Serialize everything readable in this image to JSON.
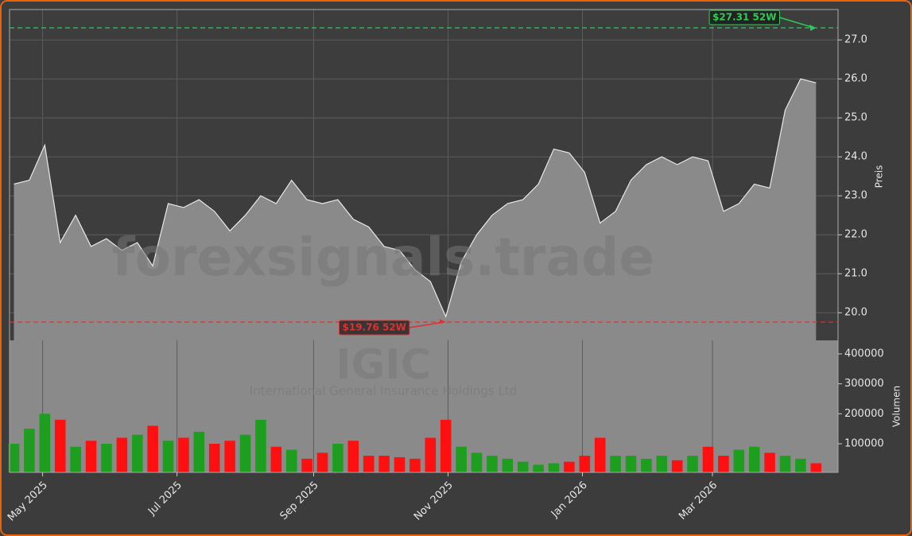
{
  "chart_data": {
    "type": "area",
    "watermark": "forexsignals.trade",
    "symbol": "IGIC",
    "company": "International General Insurance Holdings Ltd",
    "ylabel": "Preis",
    "color": "#8a8a8a",
    "line_color": "#e8e8e8",
    "grid": true,
    "x": [
      "2025-04-18",
      "2025-04-25",
      "2025-05-02",
      "2025-05-09",
      "2025-05-16",
      "2025-05-23",
      "2025-05-30",
      "2025-06-06",
      "2025-06-13",
      "2025-06-20",
      "2025-06-27",
      "2025-07-04",
      "2025-07-11",
      "2025-07-18",
      "2025-07-25",
      "2025-08-01",
      "2025-08-08",
      "2025-08-15",
      "2025-08-22",
      "2025-08-29",
      "2025-09-05",
      "2025-09-12",
      "2025-09-19",
      "2025-09-26",
      "2025-10-03",
      "2025-10-10",
      "2025-10-17",
      "2025-10-24",
      "2025-10-31",
      "2025-11-07",
      "2025-11-14",
      "2025-11-21",
      "2025-11-28",
      "2025-12-05",
      "2025-12-12",
      "2025-12-19",
      "2025-12-26",
      "2026-01-02",
      "2026-01-09",
      "2026-01-16",
      "2026-01-23",
      "2026-01-30",
      "2026-02-06",
      "2026-02-13",
      "2026-02-20",
      "2026-02-27",
      "2026-03-06",
      "2026-03-13",
      "2026-03-20",
      "2026-03-27",
      "2026-04-03",
      "2026-04-10",
      "2026-04-17"
    ],
    "values": [
      23.3,
      23.4,
      24.3,
      21.8,
      22.5,
      21.7,
      21.9,
      21.6,
      21.8,
      21.2,
      22.8,
      22.7,
      22.9,
      22.6,
      22.1,
      22.5,
      23.0,
      22.8,
      23.4,
      22.9,
      22.8,
      22.9,
      22.4,
      22.2,
      21.7,
      21.6,
      21.1,
      20.8,
      19.9,
      21.3,
      22.0,
      22.5,
      22.8,
      22.9,
      23.3,
      24.2,
      24.1,
      23.6,
      22.3,
      22.6,
      23.4,
      23.8,
      24.0,
      23.8,
      24.0,
      23.9,
      22.6,
      22.8,
      23.3,
      23.2,
      25.2,
      26.0,
      25.9
    ],
    "xlim": [
      "2025-04-16",
      "2026-04-27"
    ],
    "xticks": [
      {
        "value": "2025-05-01",
        "label": "May 2025"
      },
      {
        "value": "2025-07-01",
        "label": "Jul 2025"
      },
      {
        "value": "2025-09-01",
        "label": "Sep 2025"
      },
      {
        "value": "2025-11-01",
        "label": "Nov 2025"
      },
      {
        "value": "2026-01-01",
        "label": "Jan 2026"
      },
      {
        "value": "2026-03-01",
        "label": "Mar 2026"
      }
    ],
    "ylim": [
      19.29,
      27.78
    ],
    "yticks": [
      {
        "value": 20,
        "label": "20.0"
      },
      {
        "value": 21,
        "label": "21.0"
      },
      {
        "value": 22,
        "label": "22.0"
      },
      {
        "value": 23,
        "label": "23.0"
      },
      {
        "value": 24,
        "label": "24.0"
      },
      {
        "value": 25,
        "label": "25.0"
      },
      {
        "value": 26,
        "label": "26.0"
      },
      {
        "value": 27,
        "label": "27.0"
      }
    ],
    "high": {
      "value": 27.31,
      "label": "$27.31 52W",
      "x": "2026-04-17",
      "color": "#2ecc55"
    },
    "low": {
      "value": 19.76,
      "label": "$19.76 52W",
      "x": "2025-10-31",
      "color": "#e03030"
    },
    "volume": {
      "ylabel": "Volumen",
      "up_color": "#1e9e1e",
      "down_color": "#ff1010",
      "values": [
        100000,
        150000,
        200000,
        180000,
        90000,
        110000,
        100000,
        120000,
        130000,
        160000,
        110000,
        120000,
        140000,
        100000,
        110000,
        130000,
        180000,
        90000,
        80000,
        50000,
        70000,
        100000,
        110000,
        60000,
        60000,
        55000,
        50000,
        120000,
        180000,
        90000,
        70000,
        60000,
        50000,
        40000,
        30000,
        35000,
        40000,
        60000,
        120000,
        60000,
        60000,
        50000,
        60000,
        45000,
        60000,
        90000,
        60000,
        80000,
        90000,
        70000,
        60000,
        50000,
        35000
      ],
      "ylim": [
        4500,
        445000
      ],
      "yticks": [
        100000,
        200000,
        300000,
        400000
      ]
    }
  }
}
